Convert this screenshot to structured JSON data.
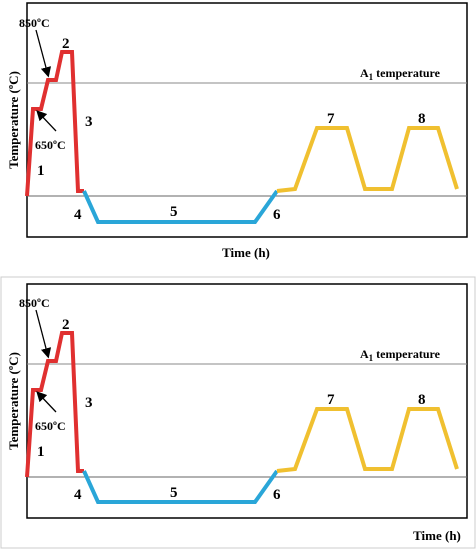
{
  "panels": [
    {
      "ylabel": "Temperature (ºC)",
      "xlabel": "Time (h)",
      "a1_label": "A1 temperature",
      "annotations": {
        "t850": "850ºC",
        "t650": "650ºC"
      },
      "step_labels": [
        "1",
        "2",
        "3",
        "4",
        "5",
        "6",
        "7",
        "8"
      ]
    },
    {
      "ylabel": "Temperature (ºC)",
      "xlabel": "Time (h)",
      "a1_label": "A1 temperature",
      "annotations": {
        "t850": "850ºC",
        "t650": "650ºC"
      },
      "step_labels": [
        "1",
        "2",
        "3",
        "4",
        "5",
        "6",
        "7",
        "8"
      ]
    }
  ],
  "colors": {
    "heating": "#e03030",
    "cryogenic": "#2aa6d8",
    "tempering": "#f0c030",
    "frame": "#000000",
    "reference_line": "#888888"
  }
}
